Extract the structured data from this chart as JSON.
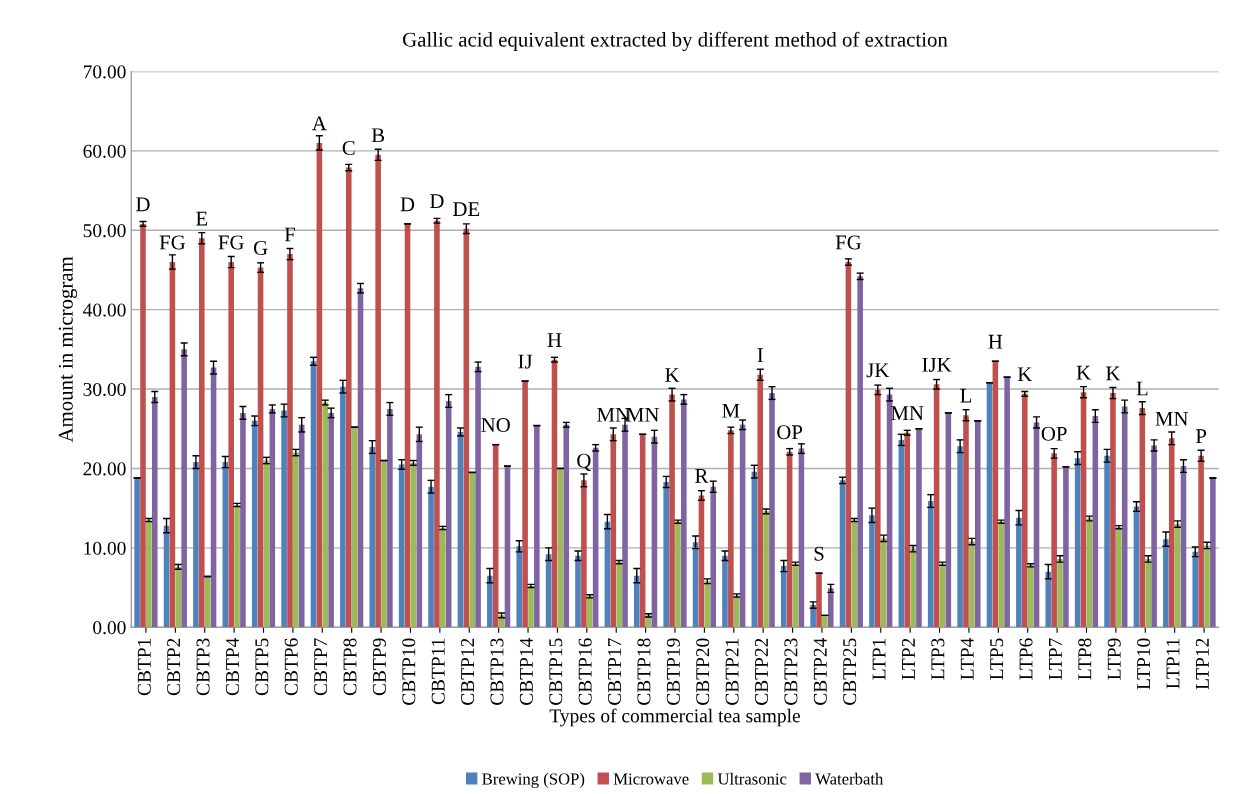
{
  "chart_data": {
    "type": "bar",
    "title": "Gallic acid equivalent extracted by different method of extraction",
    "xlabel": "Types of commercial tea sample",
    "ylabel": "Amount in microgram",
    "categories": [
      "CBTP1",
      "CBTP2",
      "CBTP3",
      "CBTP4",
      "CBTP5",
      "CBTP6",
      "CBTP7",
      "CBTP8",
      "CBTP9",
      "CBTP10",
      "CBTP11",
      "CBTP12",
      "CBTP13",
      "CBTP14",
      "CBTP15",
      "CBTP16",
      "CBTP17",
      "CBTP18",
      "CBTP19",
      "CBTP20",
      "CBTP21",
      "CBTP22",
      "CBTP23",
      "CBTP24",
      "CBTP25",
      "LTP1",
      "LTP2",
      "LTP3",
      "LTP4",
      "LTP5",
      "LTP6",
      "LTP7",
      "LTP8",
      "LTP9",
      "LTP10",
      "LTP11",
      "LTP12"
    ],
    "series": [
      {
        "name": "Brewing (SOP)",
        "color": "#4f81bd",
        "values": [
          18.8,
          12.8,
          20.8,
          20.8,
          26,
          27.3,
          33.5,
          30.3,
          22.7,
          20.5,
          17.7,
          24.6,
          6.5,
          10.2,
          9.2,
          9,
          13.3,
          6.5,
          18.3,
          10.7,
          9,
          19.6,
          7.7,
          2.8,
          18.5,
          14.1,
          23.6,
          15.9,
          22.8,
          30.8,
          13.8,
          7,
          21.3,
          21.6,
          15.2,
          11.1,
          9.5
        ],
        "errors": [
          null,
          0.9,
          0.8,
          0.7,
          0.6,
          0.8,
          0.5,
          0.8,
          0.8,
          0.6,
          0.8,
          0.5,
          0.9,
          0.7,
          0.8,
          0.6,
          0.9,
          0.9,
          0.7,
          0.8,
          0.6,
          0.8,
          0.7,
          0.4,
          0.4,
          0.9,
          0.7,
          0.8,
          0.8,
          null,
          0.9,
          0.9,
          0.8,
          0.8,
          0.6,
          0.9,
          0.6
        ]
      },
      {
        "name": "Microwave",
        "color": "#c0504d",
        "values": [
          50.8,
          46,
          49,
          46,
          45.3,
          47,
          61,
          57.9,
          59.5,
          50.8,
          51.2,
          50.2,
          23,
          31,
          33.7,
          18.5,
          24.3,
          24.3,
          29.3,
          16.6,
          24.8,
          31.8,
          22.1,
          6.8,
          46,
          29.9,
          24.5,
          30.6,
          26.7,
          33.5,
          29.4,
          21.9,
          29.6,
          29.5,
          27.6,
          23.8,
          21.6
        ],
        "errors": [
          0.3,
          0.9,
          0.7,
          0.7,
          0.6,
          0.7,
          0.9,
          0.4,
          0.7,
          null,
          0.3,
          0.6,
          null,
          null,
          0.3,
          0.8,
          0.8,
          null,
          0.8,
          0.6,
          0.4,
          0.7,
          0.4,
          null,
          0.4,
          0.6,
          0.3,
          0.6,
          0.7,
          null,
          0.3,
          0.6,
          0.7,
          0.7,
          0.8,
          0.8,
          0.7
        ]
      },
      {
        "name": "Ultrasonic",
        "color": "#9bbb59",
        "values": [
          13.5,
          7.6,
          6.4,
          15.4,
          21,
          22,
          28.3,
          25.2,
          21,
          20.7,
          12.5,
          19.5,
          1.5,
          5.2,
          20,
          3.9,
          8.2,
          1.5,
          13.3,
          5.8,
          4,
          14.6,
          8,
          1.5,
          13.5,
          11.2,
          9.9,
          8,
          10.8,
          13.3,
          7.8,
          8.6,
          13.7,
          12.6,
          8.6,
          13,
          10.3
        ],
        "errors": [
          0.2,
          0.3,
          null,
          0.2,
          0.4,
          0.4,
          0.3,
          null,
          null,
          0.3,
          0.2,
          null,
          0.3,
          0.2,
          null,
          0.2,
          0.2,
          0.2,
          0.2,
          0.3,
          0.2,
          0.3,
          0.2,
          null,
          0.2,
          0.4,
          0.4,
          0.2,
          0.4,
          0.2,
          0.2,
          0.4,
          0.3,
          0.2,
          0.4,
          0.4,
          0.4
        ]
      },
      {
        "name": "Waterbath",
        "color": "#8064a2",
        "values": [
          29,
          35,
          32.7,
          27,
          27.5,
          25.5,
          27,
          42.7,
          27.5,
          24.3,
          28.5,
          32.8,
          20.3,
          25.4,
          25.5,
          22.6,
          25.5,
          24,
          28.7,
          17.7,
          25.5,
          29.5,
          22.5,
          4.9,
          44.2,
          29.3,
          25,
          27,
          26,
          31.5,
          25.8,
          20.2,
          26.6,
          27.8,
          22.9,
          20.3,
          18.8
        ],
        "errors": [
          0.7,
          0.8,
          0.8,
          0.8,
          0.5,
          0.9,
          0.6,
          0.6,
          0.8,
          0.9,
          0.8,
          0.6,
          null,
          null,
          0.3,
          0.4,
          0.8,
          0.8,
          0.6,
          0.7,
          0.6,
          0.8,
          0.6,
          0.5,
          0.4,
          0.8,
          null,
          null,
          null,
          null,
          0.7,
          null,
          0.8,
          0.8,
          0.7,
          0.8,
          null
        ]
      }
    ],
    "ylim": [
      0,
      70
    ],
    "yticks": [
      {
        "value": 0,
        "label": "0.00"
      },
      {
        "value": 10,
        "label": "10.00"
      },
      {
        "value": 20,
        "label": "20.00"
      },
      {
        "value": 30,
        "label": "30.00"
      },
      {
        "value": 40,
        "label": "40.00"
      },
      {
        "value": 50,
        "label": "50.00"
      },
      {
        "value": 60,
        "label": "60.00"
      },
      {
        "value": 70,
        "label": "70.00"
      }
    ],
    "grid": "y",
    "legend": "bottom",
    "annotations": [
      {
        "text": "D",
        "x": "CBTP1",
        "y": 50.8
      },
      {
        "text": "FG",
        "x": "CBTP2",
        "y": 46
      },
      {
        "text": "E",
        "x": "CBTP3",
        "y": 49
      },
      {
        "text": "FG",
        "x": "CBTP4",
        "y": 46
      },
      {
        "text": "G",
        "x": "CBTP5",
        "y": 45.3
      },
      {
        "text": "F",
        "x": "CBTP6",
        "y": 47
      },
      {
        "text": "A",
        "x": "CBTP7",
        "y": 61
      },
      {
        "text": "C",
        "x": "CBTP8",
        "y": 57.9
      },
      {
        "text": "B",
        "x": "CBTP9",
        "y": 59.5
      },
      {
        "text": "D",
        "x": "CBTP10",
        "y": 50.8
      },
      {
        "text": "D",
        "x": "CBTP11",
        "y": 51.2
      },
      {
        "text": "DE",
        "x": "CBTP12",
        "y": 50.2
      },
      {
        "text": "NO",
        "x": "CBTP13",
        "y": 23
      },
      {
        "text": "IJ",
        "x": "CBTP14",
        "y": 31
      },
      {
        "text": "H",
        "x": "CBTP15",
        "y": 33.7
      },
      {
        "text": "Q",
        "x": "CBTP16",
        "y": 18.5
      },
      {
        "text": "MN",
        "x": "CBTP17",
        "y": 24.3
      },
      {
        "text": "MN",
        "x": "CBTP18",
        "y": 24.3
      },
      {
        "text": "K",
        "x": "CBTP19",
        "y": 29.3
      },
      {
        "text": "R",
        "x": "CBTP20",
        "y": 16.6
      },
      {
        "text": "M",
        "x": "CBTP21",
        "y": 24.8
      },
      {
        "text": "I",
        "x": "CBTP22",
        "y": 31.8
      },
      {
        "text": "OP",
        "x": "CBTP23",
        "y": 22.1
      },
      {
        "text": "S",
        "x": "CBTP24",
        "y": 6.8
      },
      {
        "text": "FG",
        "x": "CBTP25",
        "y": 46
      },
      {
        "text": "JK",
        "x": "LTP1",
        "y": 29.9
      },
      {
        "text": "MN",
        "x": "LTP2",
        "y": 24.5
      },
      {
        "text": "IJK",
        "x": "LTP3",
        "y": 30.6
      },
      {
        "text": "L",
        "x": "LTP4",
        "y": 26.7
      },
      {
        "text": "H",
        "x": "LTP5",
        "y": 33.5
      },
      {
        "text": "K",
        "x": "LTP6",
        "y": 29.4
      },
      {
        "text": "OP",
        "x": "LTP7",
        "y": 21.9
      },
      {
        "text": "K",
        "x": "LTP8",
        "y": 29.6
      },
      {
        "text": "K",
        "x": "LTP9",
        "y": 29.5
      },
      {
        "text": "L",
        "x": "LTP10",
        "y": 27.6
      },
      {
        "text": "MN",
        "x": "LTP11",
        "y": 23.8
      },
      {
        "text": "P",
        "x": "LTP12",
        "y": 21.6
      }
    ]
  }
}
